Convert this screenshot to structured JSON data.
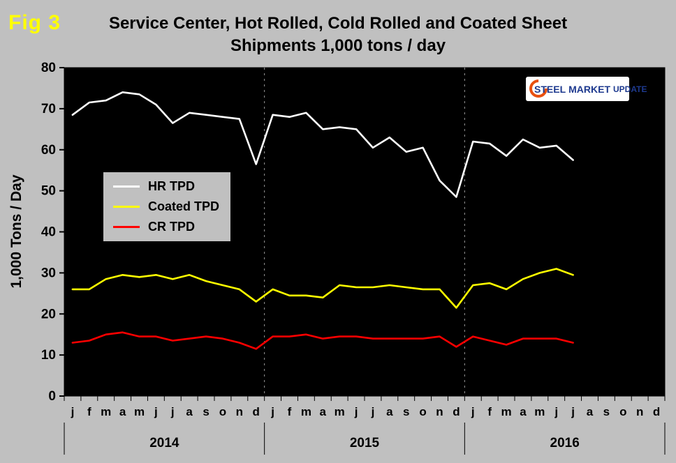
{
  "fig_label": "Fig 3",
  "title_line1": "Service Center, Hot Rolled, Cold Rolled and Coated Sheet",
  "title_line2": "Shipments 1,000 tons / day",
  "logo": {
    "steel": "STEEL",
    "market": "MARKET",
    "update": "UPDATE"
  },
  "colors": {
    "page_bg": "#c0c0c0",
    "plot_bg": "#000000",
    "fig_label": "#ffff00",
    "title": "#000000",
    "dashed_gridline": "#999999",
    "logo_orange": "#e8500f",
    "logo_blue": "#1e3a8f"
  },
  "chart_data": {
    "type": "line",
    "title": "Service Center, Hot Rolled, Cold Rolled and Coated Sheet Shipments 1,000 tons / day",
    "xlabel": "",
    "ylabel": "1,000 Tons / Day",
    "ylim": [
      0,
      80
    ],
    "ytick_step": 10,
    "grid": "dashed vertical lines at year boundaries only",
    "legend_position": "upper-left inside plot",
    "month_labels": [
      "j",
      "f",
      "m",
      "a",
      "m",
      "j",
      "j",
      "a",
      "s",
      "o",
      "n",
      "d"
    ],
    "years": [
      "2014",
      "2015",
      "2016"
    ],
    "x_note": "monthly data Jan 2014 through Jul 2016; axis extends to Dec 2016",
    "series": [
      {
        "name": "HR TPD",
        "color": "#ffffff",
        "values": [
          68.5,
          71.5,
          72,
          74,
          73.5,
          71,
          66.5,
          69,
          68.5,
          68,
          67.5,
          56.5,
          68.5,
          68,
          69,
          65,
          65.5,
          65,
          60.5,
          63,
          59.5,
          60.5,
          52.5,
          48.5,
          62,
          61.5,
          58.5,
          62.5,
          60.5,
          61,
          57.5
        ]
      },
      {
        "name": "Coated TPD",
        "color": "#ffff00",
        "values": [
          26,
          26,
          28.5,
          29.5,
          29,
          29.5,
          28.5,
          29.5,
          28,
          27,
          26,
          23,
          26,
          24.5,
          24.5,
          24,
          27,
          26.5,
          26.5,
          27,
          26.5,
          26,
          26,
          21.5,
          27,
          27.5,
          26,
          28.5,
          30,
          31,
          29.5
        ]
      },
      {
        "name": "CR TPD",
        "color": "#ff0000",
        "values": [
          13,
          13.5,
          15,
          15.5,
          14.5,
          14.5,
          13.5,
          14,
          14.5,
          14,
          13,
          11.5,
          14.5,
          14.5,
          15,
          14,
          14.5,
          14.5,
          14,
          14,
          14,
          14,
          14.5,
          12,
          14.5,
          13.5,
          12.5,
          14,
          14,
          14,
          13
        ]
      }
    ]
  }
}
